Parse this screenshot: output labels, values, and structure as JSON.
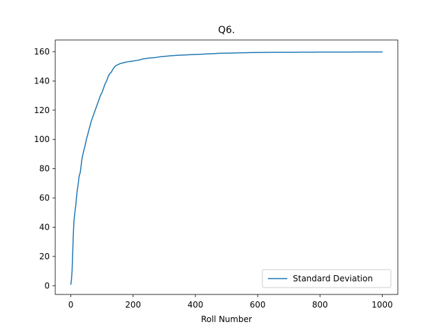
{
  "chart_data": {
    "type": "line",
    "title": "Q6.",
    "xlabel": "Roll Number",
    "ylabel": "",
    "xlim": [
      -50,
      1050
    ],
    "ylim": [
      -6,
      168
    ],
    "xticks": [
      0,
      200,
      400,
      600,
      800,
      1000
    ],
    "yticks": [
      0,
      20,
      40,
      60,
      80,
      100,
      120,
      140,
      160
    ],
    "grid": false,
    "legend": "lower right",
    "series": [
      {
        "name": "Standard Deviation",
        "color": "#1f77b4",
        "x": [
          0,
          2,
          4,
          6,
          8,
          10,
          12,
          14,
          16,
          18,
          20,
          22,
          24,
          26,
          28,
          30,
          33,
          36,
          40,
          45,
          50,
          55,
          60,
          65,
          70,
          75,
          80,
          85,
          90,
          95,
          100,
          105,
          110,
          115,
          120,
          125,
          130,
          135,
          140,
          145,
          150,
          155,
          160,
          165,
          170,
          175,
          180,
          190,
          200,
          210,
          220,
          230,
          240,
          250,
          260,
          270,
          280,
          290,
          300,
          310,
          320,
          340,
          360,
          380,
          400,
          420,
          440,
          460,
          480,
          500,
          520,
          540,
          560,
          580,
          600,
          620,
          640,
          660,
          680,
          700,
          720,
          740,
          760,
          780,
          800,
          820,
          840,
          860,
          880,
          900,
          920,
          940,
          960,
          980,
          1000
        ],
        "y": [
          1,
          4,
          10,
          22,
          35,
          44,
          48,
          52,
          55,
          60,
          64,
          67,
          70,
          74,
          76,
          77,
          82,
          87,
          91,
          95,
          100,
          104,
          108,
          112,
          115,
          118,
          121,
          124,
          127,
          130,
          132,
          135,
          138,
          140,
          143,
          145,
          146,
          148,
          149.5,
          150.5,
          151,
          151.5,
          152,
          152.2,
          152.5,
          152.8,
          153,
          153.3,
          153.6,
          154,
          154.3,
          155,
          155.3,
          155.6,
          155.8,
          156,
          156.3,
          156.6,
          156.8,
          157,
          157.2,
          157.5,
          157.7,
          157.9,
          158.1,
          158.3,
          158.5,
          158.7,
          158.9,
          159,
          159.1,
          159.2,
          159.3,
          159.4,
          159.45,
          159.5,
          159.55,
          159.6,
          159.62,
          159.64,
          159.66,
          159.68,
          159.7,
          159.71,
          159.72,
          159.73,
          159.74,
          159.75,
          159.76,
          159.77,
          159.78,
          159.79,
          159.8,
          159.8,
          159.8
        ]
      }
    ]
  }
}
